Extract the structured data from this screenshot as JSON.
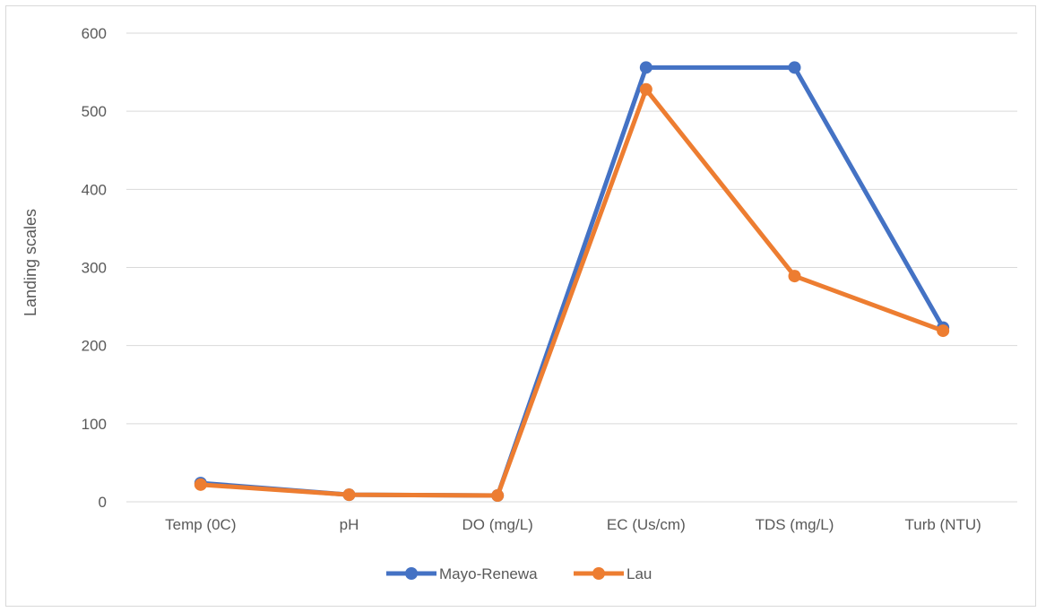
{
  "chart_data": {
    "type": "line",
    "title": "",
    "xlabel": "",
    "ylabel": "Landing scales",
    "categories": [
      "Temp (0C)",
      "pH",
      "DO (mg/L)",
      "EC (Us/cm)",
      "TDS (mg/L)",
      "Turb (NTU)"
    ],
    "ylim": [
      0,
      600
    ],
    "yticks": [
      0,
      100,
      200,
      300,
      400,
      500,
      600
    ],
    "grid": true,
    "legend_position": "bottom",
    "series": [
      {
        "name": "Mayo-Renewa",
        "color": "#4472c4",
        "values": [
          24,
          9,
          8,
          556,
          556,
          223
        ]
      },
      {
        "name": "Lau",
        "color": "#ed7d31",
        "values": [
          22,
          9,
          8,
          528,
          289,
          219
        ]
      }
    ]
  }
}
